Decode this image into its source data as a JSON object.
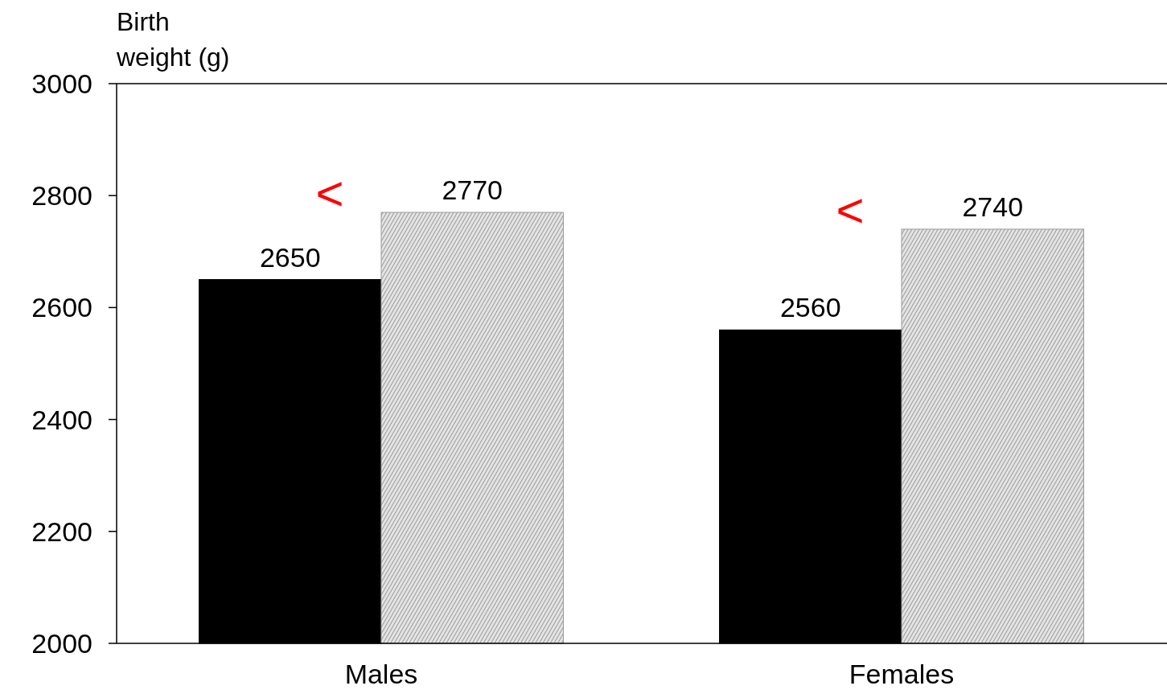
{
  "chart_data": {
    "type": "bar",
    "ylabel": "Birth weight (g)",
    "categories": [
      "Males",
      "Females"
    ],
    "series": [
      {
        "color": "#000000",
        "values": [
          2650,
          2560
        ]
      },
      {
        "color": "#9a9a9a",
        "values": [
          2770,
          2740
        ]
      }
    ],
    "ylim": [
      2000,
      3000
    ],
    "yticks": [
      2000,
      2200,
      2400,
      2600,
      2800,
      3000
    ],
    "data_labels": true,
    "grid": false,
    "annotations": [
      "<",
      "<"
    ]
  }
}
